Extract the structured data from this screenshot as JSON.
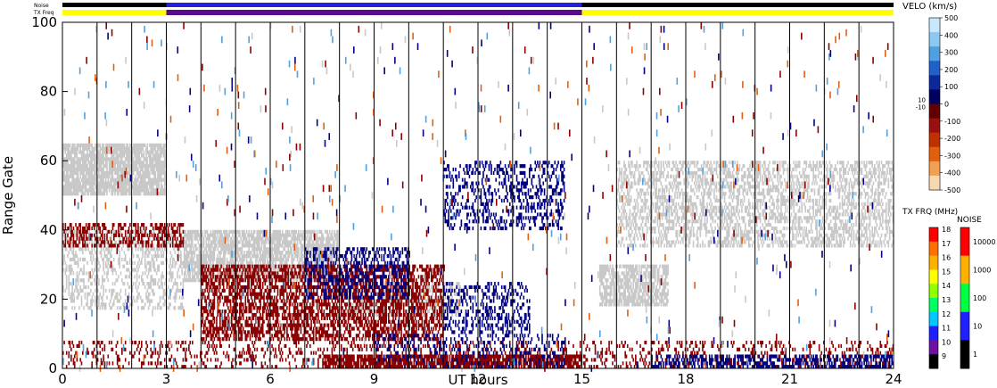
{
  "chart_data": {
    "type": "heatmap",
    "title": "",
    "xlabel": "UT hours",
    "ylabel": "Range Gate",
    "xlim": [
      0,
      24
    ],
    "ylim": [
      0,
      100
    ],
    "x_ticks": [
      0,
      3,
      6,
      9,
      12,
      15,
      18,
      21,
      24
    ],
    "y_ticks": [
      0,
      20,
      40,
      60,
      80,
      100
    ],
    "x_tick_labels": [
      "0",
      "3",
      "6",
      "9",
      "12",
      "15",
      "18",
      "21",
      "24"
    ],
    "y_tick_labels": [
      "0",
      "20",
      "40",
      "60",
      "80",
      "100"
    ],
    "vertical_lines_hours": [
      1,
      2,
      3,
      4,
      5,
      6,
      7,
      8,
      9,
      10,
      11,
      12,
      13,
      14,
      15,
      16,
      17,
      18,
      19,
      20,
      21,
      22,
      23
    ],
    "top_strips": {
      "noise_label": "Noise",
      "txfreq_label": "TX Freq",
      "txfreq_segments": [
        {
          "from": 0,
          "to": 3,
          "color": "#ffff00"
        },
        {
          "from": 3,
          "to": 15,
          "color": "#5a0a8c"
        },
        {
          "from": 15,
          "to": 24,
          "color": "#ffff00"
        }
      ],
      "noise_segments": [
        {
          "from": 0,
          "to": 3,
          "color": "#000000"
        },
        {
          "from": 3,
          "to": 15,
          "color": "#2222dd"
        },
        {
          "from": 15,
          "to": 24,
          "color": "#000000"
        }
      ]
    },
    "velocity_scale": {
      "title": "VELO (km/s)",
      "labels": [
        "500",
        "400",
        "300",
        "200",
        "100",
        "0",
        "-100",
        "-200",
        "-300",
        "-400",
        "-500"
      ],
      "small_labels": [
        "10",
        "-10"
      ],
      "colors": [
        "#c8e8ff",
        "#8cc8f0",
        "#50a0e0",
        "#2060c8",
        "#0a2a9a",
        "#000060",
        "#600000",
        "#9a1010",
        "#c03000",
        "#e06010",
        "#f0a050",
        "#f8d8b0"
      ]
    },
    "txfreq_scale": {
      "title": "TX FRQ (MHz)",
      "labels": [
        "18",
        "17",
        "16",
        "15",
        "14",
        "13",
        "12",
        "11",
        "10",
        "9"
      ],
      "colors": [
        "#ff0000",
        "#ff7000",
        "#ffb000",
        "#ffff00",
        "#90ff00",
        "#00ff60",
        "#00c8ff",
        "#2020ff",
        "#7010a0",
        "#000000"
      ]
    },
    "noise_scale": {
      "title": "NOISE",
      "labels": [
        "10000",
        "1000",
        "100",
        "10",
        "1"
      ],
      "colors": [
        "#ff0000",
        "#ffb000",
        "#00ff40",
        "#2020ff",
        "#000000"
      ]
    },
    "data_colors": {
      "ground_scatter": "#c8c8c8",
      "positive_velocity": "#000080",
      "negative_velocity": "#8b0000"
    },
    "regions": [
      {
        "kind": "gray",
        "x0": 0.0,
        "x1": 3.0,
        "y0": 50,
        "y1": 65,
        "density": 0.85
      },
      {
        "kind": "gray",
        "x0": 0.0,
        "x1": 3.5,
        "y0": 17,
        "y1": 40,
        "density": 0.35
      },
      {
        "kind": "gray",
        "x0": 3.5,
        "x1": 8.0,
        "y0": 25,
        "y1": 40,
        "density": 0.75
      },
      {
        "kind": "gray",
        "x0": 8.0,
        "x1": 11.5,
        "y0": 15,
        "y1": 25,
        "density": 0.35
      },
      {
        "kind": "gray",
        "x0": 15.5,
        "x1": 17.5,
        "y0": 18,
        "y1": 30,
        "density": 0.7
      },
      {
        "kind": "gray",
        "x0": 16.0,
        "x1": 24.0,
        "y0": 35,
        "y1": 60,
        "density": 0.45
      },
      {
        "kind": "red",
        "x0": 4.0,
        "x1": 11.0,
        "y0": 8,
        "y1": 30,
        "density": 0.55
      },
      {
        "kind": "red",
        "x0": 0.0,
        "x1": 3.5,
        "y0": 35,
        "y1": 42,
        "density": 0.45
      },
      {
        "kind": "red",
        "x0": 7.5,
        "x1": 15.0,
        "y0": 0,
        "y1": 4,
        "density": 0.75
      },
      {
        "kind": "red",
        "x0": 0.0,
        "x1": 24.0,
        "y0": 0,
        "y1": 8,
        "density": 0.2
      },
      {
        "kind": "blue",
        "x0": 7.0,
        "x1": 10.0,
        "y0": 20,
        "y1": 35,
        "density": 0.35
      },
      {
        "kind": "blue",
        "x0": 11.0,
        "x1": 13.5,
        "y0": 10,
        "y1": 25,
        "density": 0.3
      },
      {
        "kind": "blue",
        "x0": 11.0,
        "x1": 14.5,
        "y0": 40,
        "y1": 60,
        "density": 0.3
      },
      {
        "kind": "blue",
        "x0": 17.0,
        "x1": 24.0,
        "y0": 0,
        "y1": 4,
        "density": 0.5
      },
      {
        "kind": "blue",
        "x0": 9.0,
        "x1": 14.5,
        "y0": 0,
        "y1": 10,
        "density": 0.2
      }
    ]
  }
}
